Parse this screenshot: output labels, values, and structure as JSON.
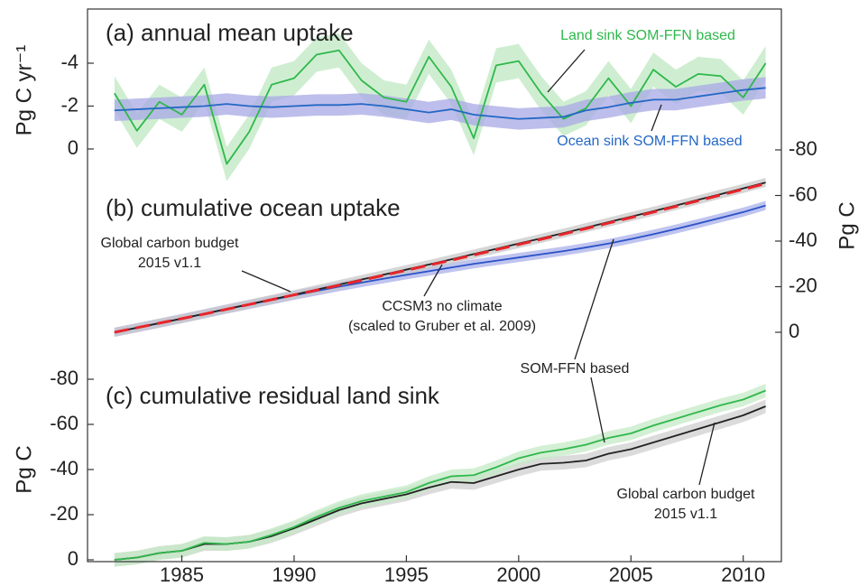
{
  "chart_data": [
    {
      "type": "line",
      "title": "(a) annual mean uptake",
      "ylabel": "Pg C yr⁻¹",
      "x": [
        1982,
        1983,
        1984,
        1985,
        1986,
        1987,
        1988,
        1989,
        1990,
        1991,
        1992,
        1993,
        1994,
        1995,
        1996,
        1997,
        1998,
        1999,
        2000,
        2001,
        2002,
        2003,
        2004,
        2005,
        2006,
        2007,
        2008,
        2009,
        2010,
        2011
      ],
      "ylim": [
        1,
        -6.5
      ],
      "yticks": [
        -4,
        -2,
        0
      ],
      "axis": "left",
      "annotations": [
        "Land sink SOM-FFN based",
        "Ocean sink SOM-FFN based"
      ],
      "series": [
        {
          "name": "Land sink SOM-FFN based",
          "color": "#2fb84c",
          "band_color": "#bfe8c2",
          "uncertainty": 0.8,
          "values": [
            -2.6,
            -0.85,
            -2.2,
            -1.6,
            -3.0,
            0.7,
            -0.8,
            -3.0,
            -3.3,
            -4.4,
            -4.6,
            -3.2,
            -2.4,
            -2.2,
            -4.3,
            -2.9,
            -0.5,
            -3.9,
            -4.1,
            -2.6,
            -1.4,
            -1.9,
            -3.3,
            -2.0,
            -3.7,
            -2.9,
            -3.5,
            -3.4,
            -2.4,
            -4.0
          ]
        },
        {
          "name": "Ocean sink SOM-FFN based",
          "color": "#2468c4",
          "band_color": "#a8a8e6",
          "uncertainty": 0.5,
          "values": [
            -1.8,
            -1.85,
            -1.9,
            -1.95,
            -2.0,
            -2.1,
            -2.0,
            -1.95,
            -2.0,
            -2.05,
            -2.05,
            -2.1,
            -2.0,
            -1.85,
            -1.7,
            -1.85,
            -1.6,
            -1.5,
            -1.4,
            -1.45,
            -1.5,
            -1.8,
            -1.95,
            -2.15,
            -2.3,
            -2.3,
            -2.45,
            -2.6,
            -2.75,
            -2.85
          ]
        }
      ]
    },
    {
      "type": "line",
      "title": "(b) cumulative ocean uptake",
      "ylabel": "Pg C",
      "x": [
        1982,
        1983,
        1984,
        1985,
        1986,
        1987,
        1988,
        1989,
        1990,
        1991,
        1992,
        1993,
        1994,
        1995,
        1996,
        1997,
        1998,
        1999,
        2000,
        2001,
        2002,
        2003,
        2004,
        2005,
        2006,
        2007,
        2008,
        2009,
        2010,
        2011
      ],
      "ylim": [
        0,
        -80
      ],
      "yticks": [
        -80,
        -60,
        -40,
        -20,
        0
      ],
      "axis": "right",
      "annotations": [
        "Global carbon budget",
        "2015 v1.1",
        "CCSM3 no climate",
        "(scaled to Gruber et al. 2009)",
        "SOM-FFN based"
      ],
      "series": [
        {
          "name": "SOM-FFN based",
          "color": "#2a52c8",
          "band_color": "#a9b0ea",
          "uncertainty": 2,
          "values": [
            0,
            -2,
            -4,
            -6,
            -8.1,
            -10.2,
            -12.2,
            -14.2,
            -16.2,
            -18.1,
            -20,
            -21.8,
            -23.5,
            -25.2,
            -26.8,
            -28.4,
            -30,
            -31.4,
            -32.8,
            -34.2,
            -35.6,
            -37.2,
            -38.9,
            -40.9,
            -43,
            -45.3,
            -47.7,
            -50.2,
            -52.7,
            -55.6
          ]
        },
        {
          "name": "Global carbon budget 2015 v1.1",
          "color": "#222222",
          "band_color": "#c8c8c8",
          "uncertainty": 2,
          "values": [
            0,
            -2,
            -4,
            -6,
            -8.1,
            -10.2,
            -12.3,
            -14.4,
            -16.5,
            -18.7,
            -20.9,
            -23.1,
            -25.3,
            -27.5,
            -29.7,
            -32,
            -34.3,
            -36.6,
            -38.9,
            -41.2,
            -43.5,
            -45.9,
            -48.3,
            -50.7,
            -53.1,
            -55.6,
            -58.1,
            -60.6,
            -63.1,
            -65.7
          ]
        },
        {
          "name": "CCSM3 no climate",
          "color": "#e8252a",
          "dashed": true,
          "values": [
            0,
            -2,
            -4,
            -6,
            -8,
            -10.1,
            -12.2,
            -14.3,
            -16.4,
            -18.5,
            -20.6,
            -22.8,
            -25,
            -27.2,
            -29.4,
            -31.6,
            -33.9,
            -36.2,
            -38.5,
            -40.8,
            -43.1,
            -45.5,
            -47.9,
            -50.3,
            -52.7,
            -55.2,
            -57.7,
            -60.2,
            -62.7,
            -65.2
          ]
        }
      ]
    },
    {
      "type": "line",
      "title": "(c) cumulative residual land sink",
      "ylabel": "Pg C",
      "x": [
        1982,
        1983,
        1984,
        1985,
        1986,
        1987,
        1988,
        1989,
        1990,
        1991,
        1992,
        1993,
        1994,
        1995,
        1996,
        1997,
        1998,
        1999,
        2000,
        2001,
        2002,
        2003,
        2004,
        2005,
        2006,
        2007,
        2008,
        2009,
        2010,
        2011
      ],
      "xlim": [
        1980.8,
        2011.7
      ],
      "xticks": [
        1985,
        1990,
        1995,
        2000,
        2005,
        2010
      ],
      "ylim": [
        0,
        -80
      ],
      "yticks": [
        -80,
        -60,
        -40,
        -20,
        0
      ],
      "axis": "left",
      "annotations": [
        "Global carbon budget",
        "2015 v1.1"
      ],
      "series": [
        {
          "name": "Global carbon budget 2015 v1.1",
          "color": "#222222",
          "band_color": "#cfcfcf",
          "uncertainty": 3,
          "values": [
            0,
            -1,
            -3,
            -4,
            -7,
            -7,
            -8,
            -10.5,
            -14,
            -18,
            -22,
            -25,
            -27,
            -29,
            -32,
            -34.5,
            -34,
            -37,
            -40,
            -42.5,
            -43,
            -44,
            -47,
            -49,
            -52,
            -55,
            -58,
            -61,
            -64,
            -68
          ]
        },
        {
          "name": "SOM-FFN based",
          "color": "#2fb84c",
          "band_color": "#c4e9c6",
          "uncertainty": 3,
          "values": [
            0,
            -1,
            -3,
            -4,
            -7.5,
            -7,
            -8,
            -11,
            -14.5,
            -19,
            -23,
            -26,
            -28,
            -30,
            -34,
            -37,
            -37.5,
            -41,
            -45,
            -47.5,
            -49,
            -51,
            -54,
            -56,
            -59.5,
            -62.5,
            -65.5,
            -68.5,
            -71,
            -75
          ]
        }
      ]
    }
  ]
}
